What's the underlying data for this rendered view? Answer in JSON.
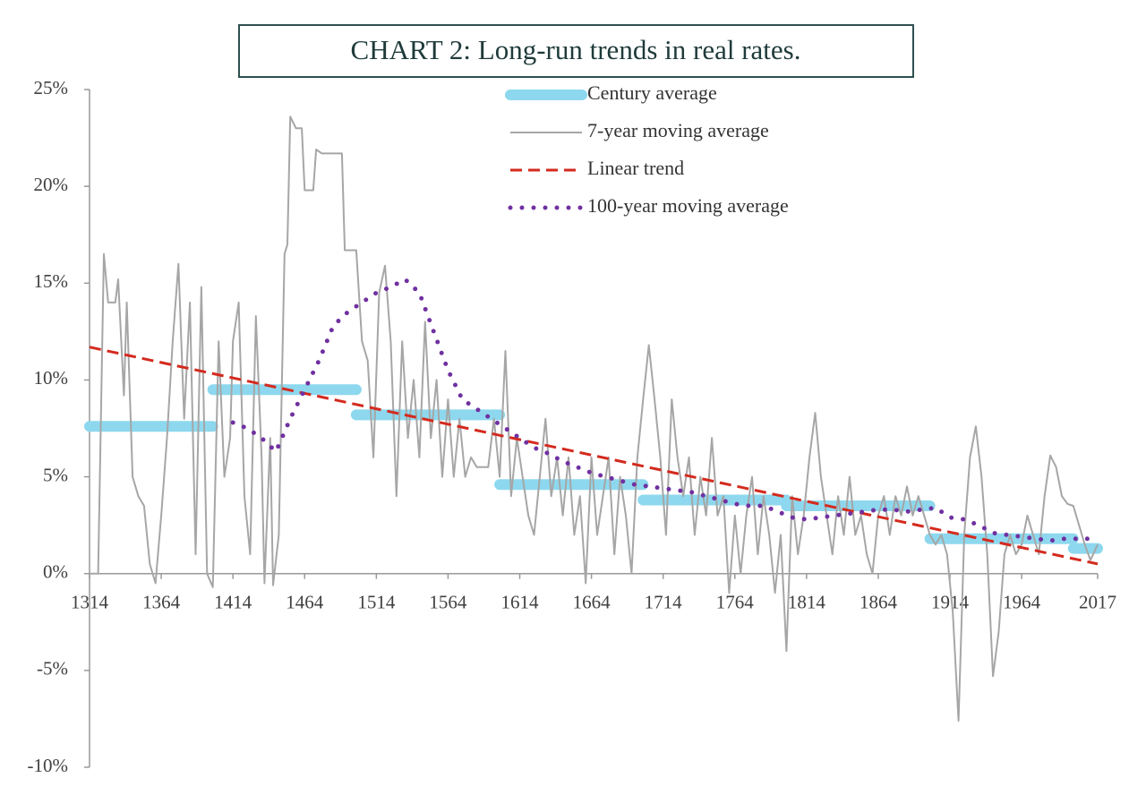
{
  "chart_data": {
    "type": "line",
    "title": "CHART 2: Long-run trends in real rates.",
    "xlim": [
      1314,
      2017
    ],
    "xticks": [
      1314,
      1364,
      1414,
      1464,
      1514,
      1564,
      1614,
      1664,
      1714,
      1764,
      1814,
      1864,
      1914,
      1964,
      2017
    ],
    "ylim": [
      -10,
      25
    ],
    "yticks": [
      {
        "value": -10,
        "label": "-10%"
      },
      {
        "value": -5,
        "label": "-5%"
      },
      {
        "value": 0,
        "label": "0%"
      },
      {
        "value": 5,
        "label": "5%"
      },
      {
        "value": 10,
        "label": "10%"
      },
      {
        "value": 15,
        "label": "15%"
      },
      {
        "value": 20,
        "label": "20%"
      },
      {
        "value": 25,
        "label": "25%"
      }
    ],
    "legend": "top",
    "series": [
      {
        "name": "Century average",
        "color": "#8dd8ee",
        "line_style": "thick",
        "x": [
          1314,
          1400,
          null,
          1400,
          1500,
          null,
          1500,
          1600,
          null,
          1600,
          1700,
          null,
          1700,
          1800,
          null,
          1800,
          1900,
          null,
          1900,
          2000,
          null,
          2000,
          2017
        ],
        "values": [
          7.6,
          7.6,
          null,
          9.5,
          9.5,
          null,
          8.2,
          8.2,
          null,
          4.6,
          4.6,
          null,
          3.8,
          3.8,
          null,
          3.5,
          3.5,
          null,
          1.8,
          1.8,
          null,
          1.3,
          1.3
        ]
      },
      {
        "name": "7-year moving average",
        "color": "#a6a6a6",
        "line_style": "solid",
        "x": [
          1314,
          1320,
          1324,
          1327,
          1332,
          1334,
          1338,
          1340,
          1344,
          1348,
          1352,
          1356,
          1360,
          1364,
          1368,
          1372,
          1376,
          1380,
          1384,
          1388,
          1392,
          1396,
          1400,
          1404,
          1408,
          1412,
          1414,
          1418,
          1422,
          1426,
          1430,
          1434,
          1436,
          1440,
          1442,
          1446,
          1450,
          1452,
          1454,
          1458,
          1462,
          1464,
          1470,
          1472,
          1476,
          1490,
          1492,
          1500,
          1504,
          1508,
          1512,
          1516,
          1520,
          1524,
          1528,
          1532,
          1536,
          1540,
          1544,
          1548,
          1552,
          1556,
          1560,
          1564,
          1568,
          1572,
          1576,
          1580,
          1584,
          1592,
          1596,
          1600,
          1604,
          1608,
          1612,
          1616,
          1620,
          1624,
          1628,
          1632,
          1636,
          1640,
          1644,
          1648,
          1652,
          1656,
          1660,
          1664,
          1668,
          1672,
          1676,
          1680,
          1684,
          1688,
          1692,
          1696,
          1700,
          1704,
          1708,
          1712,
          1716,
          1720,
          1724,
          1728,
          1732,
          1736,
          1740,
          1744,
          1748,
          1752,
          1756,
          1760,
          1764,
          1768,
          1772,
          1776,
          1780,
          1784,
          1788,
          1792,
          1796,
          1800,
          1804,
          1808,
          1812,
          1816,
          1820,
          1824,
          1828,
          1832,
          1836,
          1840,
          1844,
          1848,
          1852,
          1856,
          1860,
          1864,
          1868,
          1872,
          1876,
          1880,
          1884,
          1888,
          1892,
          1896,
          1900,
          1904,
          1908,
          1912,
          1916,
          1920,
          1924,
          1928,
          1932,
          1936,
          1940,
          1944,
          1948,
          1952,
          1956,
          1960,
          1964,
          1968,
          1972,
          1976,
          1980,
          1984,
          1988,
          1992,
          1996,
          2000,
          2004,
          2008,
          2012,
          2017
        ],
        "values": [
          0,
          0,
          16.5,
          14,
          14,
          15.2,
          9.2,
          14,
          5,
          4,
          3.5,
          0.5,
          -0.5,
          3,
          7,
          12,
          16,
          8,
          14,
          1,
          14.8,
          0,
          -0.7,
          12,
          5,
          7,
          12,
          14,
          4,
          1,
          13.3,
          6,
          -0.5,
          7,
          -0.6,
          2,
          16.5,
          17,
          23.6,
          23,
          23,
          19.8,
          19.8,
          21.9,
          21.7,
          21.7,
          16.7,
          16.7,
          12,
          11,
          6,
          14.5,
          15.9,
          12,
          4,
          12,
          7,
          10,
          6,
          13,
          7,
          10,
          5,
          9,
          5,
          8,
          5,
          6,
          5.5,
          5.5,
          8,
          5,
          11.5,
          4,
          7,
          5,
          3,
          2,
          5,
          8,
          4,
          6,
          3,
          6,
          2,
          4,
          -0.5,
          6,
          2,
          4,
          6,
          1,
          5,
          3,
          0,
          6,
          9,
          11.8,
          9,
          6,
          2,
          9,
          6,
          4,
          6,
          2,
          5,
          3,
          7,
          3,
          4,
          -1,
          3,
          0,
          3,
          5,
          1,
          4,
          2,
          -1,
          2,
          -4,
          4,
          1,
          3,
          6,
          8.3,
          5,
          3,
          1,
          4,
          2,
          5,
          2,
          3,
          1,
          0,
          3,
          4,
          2,
          4,
          3,
          4.5,
          3,
          4,
          3,
          2,
          1.5,
          2,
          1,
          -2,
          -7.6,
          2,
          6,
          7.6,
          5,
          1,
          -5.3,
          -3,
          1,
          2,
          1,
          1.5,
          3,
          2,
          1,
          4,
          6.1,
          5.5,
          4,
          3.6,
          3.5,
          2.5,
          1.5,
          0.7,
          1.5
        ]
      },
      {
        "name": "Linear trend",
        "color": "#d42a1e",
        "line_style": "dashed",
        "x": [
          1314,
          2017
        ],
        "values": [
          11.7,
          0.5
        ]
      },
      {
        "name": "100-year moving average",
        "color": "#7030a0",
        "line_style": "dotted",
        "x": [
          1414,
          1424,
          1434,
          1444,
          1454,
          1464,
          1474,
          1484,
          1494,
          1504,
          1514,
          1524,
          1534,
          1544,
          1554,
          1564,
          1574,
          1584,
          1594,
          1604,
          1614,
          1624,
          1634,
          1644,
          1654,
          1664,
          1674,
          1684,
          1694,
          1704,
          1714,
          1724,
          1734,
          1744,
          1754,
          1764,
          1774,
          1784,
          1794,
          1804,
          1814,
          1824,
          1834,
          1844,
          1854,
          1864,
          1874,
          1884,
          1894,
          1904,
          1914,
          1924,
          1934,
          1944,
          1954,
          1964,
          1974,
          1984,
          1994,
          2004,
          2017
        ],
        "values": [
          7.8,
          7.5,
          7,
          6.3,
          8,
          9.5,
          11,
          12.8,
          13.5,
          14,
          14.5,
          14.8,
          15.2,
          14.5,
          12.5,
          10.5,
          9,
          8.5,
          8,
          7.5,
          7,
          6.5,
          6.2,
          5.8,
          5.5,
          5.2,
          5,
          4.8,
          4.6,
          4.5,
          4.4,
          4.3,
          4.2,
          4,
          3.8,
          3.6,
          3.5,
          3.5,
          3.2,
          2.9,
          2.8,
          2.9,
          3,
          3.1,
          3.2,
          3.3,
          3.3,
          3.2,
          3.3,
          3.4,
          2.9,
          2.8,
          2.5,
          2.1,
          2,
          1.9,
          1.8,
          1.7,
          1.8,
          1.8,
          1.8
        ]
      }
    ]
  }
}
